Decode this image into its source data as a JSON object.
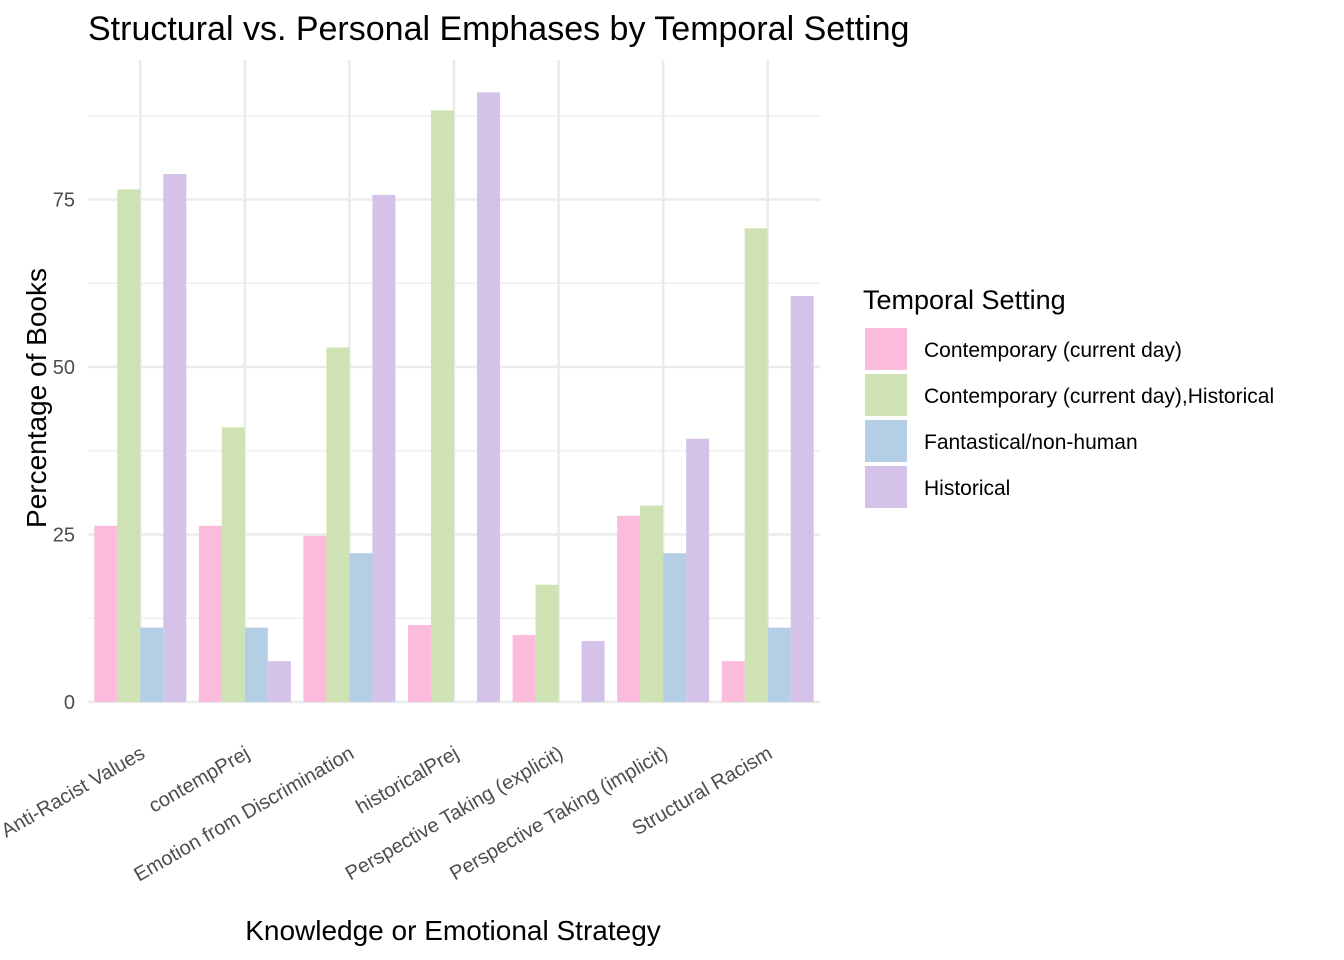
{
  "chart_data": {
    "type": "bar",
    "title": "Structural vs. Personal Emphases by Temporal Setting",
    "xlabel": "Knowledge or Emotional Strategy",
    "ylabel": "Percentage of Books",
    "ylim": [
      0,
      95
    ],
    "yticks": [
      0,
      25,
      50,
      75
    ],
    "grid": true,
    "categories": [
      "Anti-Racist Values",
      "contempPrej",
      "Emotion from Discrimination",
      "historicalPrej",
      "Perspective Taking (explicit)",
      "Perspective Taking (implicit)",
      "Structural Racism"
    ],
    "legend": {
      "title": "Temporal Setting",
      "position": "right"
    },
    "series": [
      {
        "name": "Contemporary (current day)",
        "color": "#FBBCDC",
        "values": [
          26.3,
          26.3,
          24.8,
          11.5,
          10.0,
          27.8,
          6.1
        ]
      },
      {
        "name": "Contemporary (current day),Historical",
        "color": "#CEE2B3",
        "values": [
          76.5,
          41.0,
          52.9,
          88.3,
          17.5,
          29.3,
          70.7
        ]
      },
      {
        "name": "Fantastical/non-human",
        "color": "#B3CEE5",
        "values": [
          11.1,
          11.1,
          22.2,
          0,
          0,
          22.2,
          11.1
        ]
      },
      {
        "name": "Historical",
        "color": "#D5C2E9",
        "values": [
          78.8,
          6.1,
          75.7,
          91.0,
          9.1,
          39.3,
          60.6
        ]
      }
    ]
  }
}
